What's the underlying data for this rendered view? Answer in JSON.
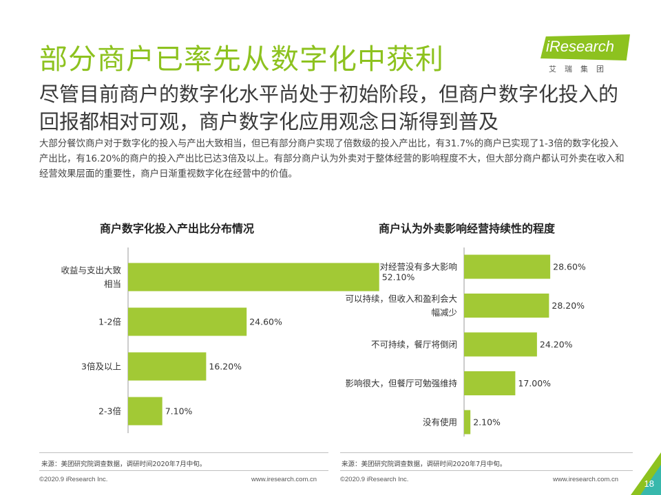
{
  "header": {
    "title": "部分商户已率先从数字化中获利",
    "subtitle": "尽管目前商户的数字化水平尚处于初始阶段，但商户数字化投入的回报都相对可观，商户数字化应用观念日渐得到普及",
    "description": "大部分餐饮商户对于数字化的投入与产出大致相当，但已有部分商户实现了倍数级的投入产出比，有31.7%的商户已实现了1-3倍的数字化投入产出比，有16.20%的商户的投入产出比已达3倍及以上。有部分商户认为外卖对于整体经营的影响程度不大，但大部分商户都认可外卖在收入和经营效果层面的重要性，商户日渐重视数字化在经营中的价值。"
  },
  "logo": {
    "text": "iResearch",
    "sub": "艾瑞集团"
  },
  "colors": {
    "brand": "#8dc21f",
    "bar": "#a2c935"
  },
  "chart_data": [
    {
      "type": "bar",
      "orientation": "horizontal",
      "title": "商户数字化投入产出比分布情况",
      "categories": [
        "收益与支出大致相当",
        "1-2倍",
        "3倍及以上",
        "2-3倍"
      ],
      "category_lines": [
        [
          "收益与支出大致",
          "相当"
        ],
        [
          "1-2倍"
        ],
        [
          "3倍及以上"
        ],
        [
          "2-3倍"
        ]
      ],
      "values": [
        52.1,
        24.6,
        16.2,
        7.1
      ],
      "value_labels": [
        "52.10%",
        "24.60%",
        "16.20%",
        "7.10%"
      ],
      "xlim": [
        0,
        60
      ],
      "grid": false
    },
    {
      "type": "bar",
      "orientation": "horizontal",
      "title": "商户认为外卖影响经营持续性的程度",
      "categories": [
        "对经营没有多大影响",
        "可以持续，但收入和盈利会大幅减少",
        "不可持续，餐厅将倒闭",
        "影响很大，但餐厅可勉强维持",
        "没有使用"
      ],
      "category_lines": [
        [
          "对经营没有多大影响"
        ],
        [
          "可以持续，但收入和盈利会大",
          "幅减少"
        ],
        [
          "不可持续，餐厅将倒闭"
        ],
        [
          "影响很大，但餐厅可勉强维持"
        ],
        [
          "没有使用"
        ]
      ],
      "values": [
        28.6,
        28.2,
        24.2,
        17.0,
        2.1
      ],
      "value_labels": [
        "28.60%",
        "28.20%",
        "24.20%",
        "17.00%",
        "2.10%"
      ],
      "xlim": [
        0,
        40
      ],
      "grid": false
    }
  ],
  "footer": {
    "source_left": "来源：美团研究院调查数据，调研时间2020年7月中旬。",
    "source_right": "来源：美团研究院调查数据，调研时间2020年7月中旬。",
    "copyright_left": "©2020.9 iResearch Inc.",
    "url_left": "www.iresearch.com.cn",
    "copyright_right": "©2020.9 iResearch Inc.",
    "url_right": "www.iresearch.com.cn",
    "page_number": "18"
  }
}
